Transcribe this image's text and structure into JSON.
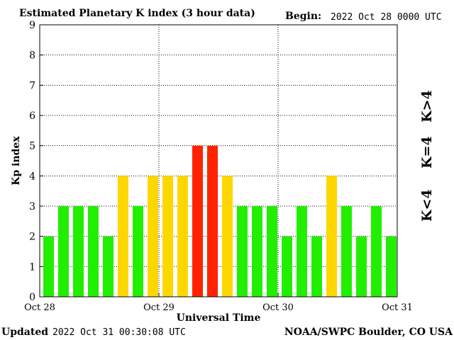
{
  "header": {
    "title": "Estimated Planetary K index (3 hour data)",
    "begin_label": "Begin:",
    "begin_value": "2022 Oct 28 0000 UTC"
  },
  "footer": {
    "updated_label": "Updated",
    "updated_value": "2022 Oct 31 00:30:08 UTC",
    "source": "NOAA/SWPC Boulder, CO USA"
  },
  "legend": {
    "high": "K>4",
    "equal": "K=4",
    "low": "K<4"
  },
  "colors": {
    "low": "#22ee00",
    "equal": "#ffd700",
    "high": "#ff2200"
  },
  "chart_data": {
    "type": "bar",
    "title": "Estimated Planetary K index (3 hour data)",
    "xlabel": "Universal Time",
    "ylabel": "Kp index",
    "ylim": [
      0,
      9
    ],
    "yticks": [
      0,
      1,
      2,
      3,
      4,
      5,
      6,
      7,
      8,
      9
    ],
    "xticks": [
      "Oct 28",
      "Oct 29",
      "Oct 30",
      "Oct 31"
    ],
    "grid": true,
    "values": [
      2,
      3,
      3,
      3,
      2,
      4,
      3,
      4,
      4,
      4,
      5,
      5,
      4,
      3,
      3,
      3,
      2,
      3,
      2,
      4,
      3,
      2,
      3,
      2
    ]
  }
}
